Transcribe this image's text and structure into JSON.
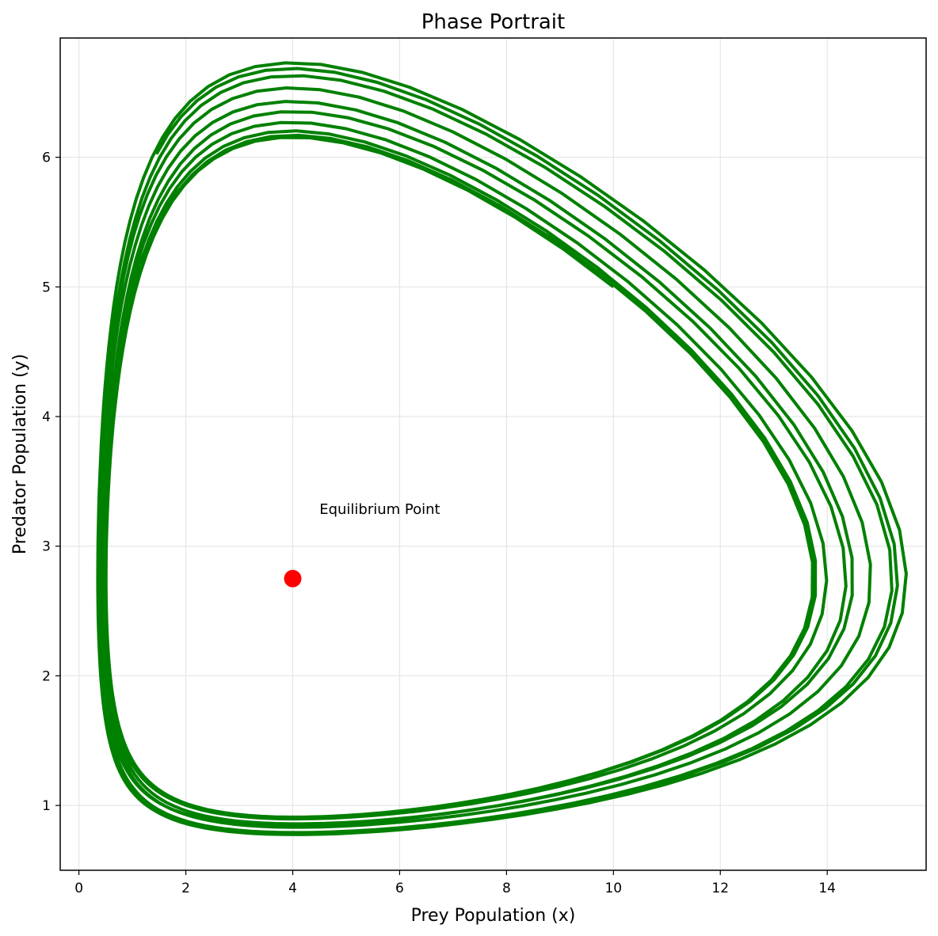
{
  "chart_data": {
    "type": "line",
    "title": "Phase Portrait",
    "xlabel": "Prey Population (x)",
    "ylabel": "Predator Population (y)",
    "xlim": [
      -0.35,
      15.85
    ],
    "ylim": [
      0.5,
      6.92
    ],
    "xticks": [
      0,
      2,
      4,
      6,
      8,
      10,
      12,
      14
    ],
    "yticks": [
      1,
      2,
      3,
      4,
      5,
      6
    ],
    "grid": true,
    "colors": {
      "trajectory": "#008000",
      "equilibrium": "#ff0000",
      "grid": "#e6e6e6",
      "axes": "#000000"
    },
    "model": {
      "alpha": 1.1,
      "beta": 0.4,
      "delta": 0.1,
      "gamma": 0.4,
      "x0": 10,
      "y0": 5,
      "t_max": 100,
      "damping": 0.0035
    },
    "series": [
      {
        "kind": "trajectory",
        "start": [
          10,
          5
        ]
      },
      {
        "kind": "point",
        "x": 4,
        "y": 2.75
      }
    ],
    "annotations": [
      {
        "text": "Equilibrium Point",
        "x": 4.5,
        "y": 3.25
      }
    ]
  }
}
